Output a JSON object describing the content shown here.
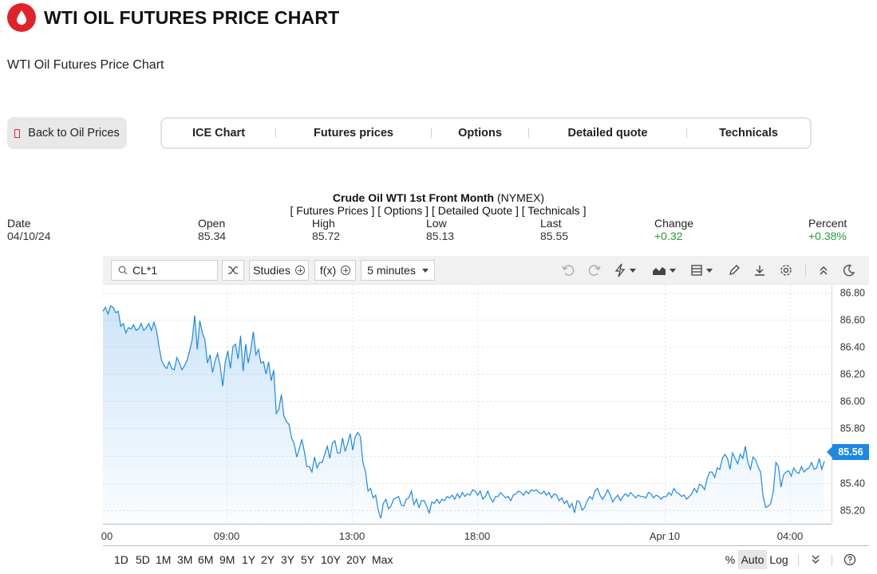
{
  "header": {
    "title": "WTI OIL FUTURES PRICE CHART",
    "subtitle": "WTI Oil Futures Price Chart",
    "brand_color": "#e0232a"
  },
  "back_button": {
    "label": "Back to Oil Prices"
  },
  "nav_tabs": [
    "ICE Chart",
    "Futures prices",
    "Options",
    "Detailed quote",
    "Technicals"
  ],
  "quote": {
    "name": "Crude Oil WTI 1st Front Month",
    "exchange": "(NYMEX)",
    "links": [
      "[ Futures Prices ]",
      "[ Options ]",
      "[ Detailed Quote ]",
      "[ Technicals ]"
    ],
    "date_label": "Date",
    "date": "04/10/24",
    "open_label": "Open",
    "open": "85.34",
    "high_label": "High",
    "high": "85.72",
    "low_label": "Low",
    "low": "85.13",
    "last_label": "Last",
    "last": "85.55",
    "change_label": "Change",
    "change": "+0.32",
    "percent_label": "Percent",
    "percent": "+0.38%",
    "positive_color": "#1f9e3a"
  },
  "toolbar": {
    "symbol": "CL*1",
    "studies_label": "Studies",
    "fx_label": "f(x)",
    "interval_label": "5 minutes",
    "icons": [
      "undo-icon",
      "redo-icon",
      "lightning-icon",
      "chart-type-icon",
      "layout-icon",
      "pencil-icon",
      "download-icon",
      "gear-icon",
      "collapse-icon",
      "dark-mode-icon"
    ]
  },
  "ranges": [
    "1D",
    "5D",
    "1M",
    "3M",
    "6M",
    "9M",
    "1Y",
    "2Y",
    "3Y",
    "5Y",
    "10Y",
    "20Y",
    "Max"
  ],
  "scale_buttons": {
    "percent": "%",
    "auto": "Auto",
    "log": "Log"
  },
  "price_badge": "85.56",
  "chart_data": {
    "type": "area",
    "line_color": "#1e88e5",
    "y_ticks": [
      "86.80",
      "86.60",
      "86.40",
      "86.20",
      "86.00",
      "85.80",
      "85.60",
      "85.40",
      "85.20"
    ],
    "x_ticks": [
      "00",
      "09:00",
      "13:00",
      "18:00",
      "Apr 10",
      "04:00"
    ],
    "ylim": [
      85.1,
      86.85
    ],
    "grid": true,
    "last_value": 85.56,
    "values": [
      86.66,
      86.69,
      86.64,
      86.7,
      86.69,
      86.65,
      86.66,
      86.55,
      86.57,
      86.5,
      86.54,
      86.53,
      86.56,
      86.52,
      86.53,
      86.57,
      86.52,
      86.54,
      86.57,
      86.52,
      86.58,
      86.52,
      86.4,
      86.3,
      86.26,
      86.24,
      86.29,
      86.24,
      86.23,
      86.32,
      86.28,
      86.23,
      86.26,
      86.3,
      86.37,
      86.45,
      86.63,
      86.38,
      86.59,
      86.5,
      86.45,
      86.28,
      86.34,
      86.21,
      86.3,
      86.35,
      86.26,
      86.11,
      86.29,
      86.37,
      86.24,
      86.4,
      86.42,
      86.31,
      86.48,
      86.22,
      86.42,
      86.28,
      86.38,
      86.51,
      86.34,
      86.38,
      86.28,
      86.29,
      86.2,
      86.29,
      86.15,
      86.23,
      85.91,
      85.94,
      86.05,
      85.89,
      85.85,
      85.83,
      85.73,
      85.69,
      85.59,
      85.65,
      85.72,
      85.63,
      85.52,
      85.52,
      85.48,
      85.59,
      85.51,
      85.55,
      85.55,
      85.61,
      85.67,
      85.58,
      85.69,
      85.71,
      85.62,
      85.62,
      85.73,
      85.63,
      85.69,
      85.76,
      85.64,
      85.74,
      85.77,
      85.74,
      85.55,
      85.48,
      85.34,
      85.36,
      85.29,
      85.31,
      85.2,
      85.14,
      85.25,
      85.28,
      85.21,
      85.23,
      85.28,
      85.29,
      85.3,
      85.24,
      85.23,
      85.28,
      85.29,
      85.34,
      85.24,
      85.28,
      85.22,
      85.27,
      85.27,
      85.23,
      85.18,
      85.26,
      85.25,
      85.28,
      85.25,
      85.28,
      85.27,
      85.3,
      85.29,
      85.31,
      85.28,
      85.32,
      85.29,
      85.33,
      85.3,
      85.32,
      85.31,
      85.35,
      85.34,
      85.31,
      85.34,
      85.28,
      85.3,
      85.34,
      85.29,
      85.26,
      85.3,
      85.3,
      85.33,
      85.31,
      85.29,
      85.3,
      85.27,
      85.31,
      85.32,
      85.34,
      85.33,
      85.31,
      85.34,
      85.32,
      85.35,
      85.34,
      85.35,
      85.33,
      85.32,
      85.34,
      85.31,
      85.33,
      85.29,
      85.32,
      85.31,
      85.27,
      85.29,
      85.25,
      85.27,
      85.22,
      85.25,
      85.18,
      85.27,
      85.26,
      85.2,
      85.22,
      85.27,
      85.3,
      85.28,
      85.34,
      85.36,
      85.31,
      85.28,
      85.31,
      85.35,
      85.31,
      85.26,
      85.29,
      85.31,
      85.27,
      85.3,
      85.32,
      85.3,
      85.33,
      85.31,
      85.29,
      85.31,
      85.3,
      85.3,
      85.29,
      85.33,
      85.32,
      85.29,
      85.31,
      85.3,
      85.28,
      85.3,
      85.3,
      85.33,
      85.31,
      85.36,
      85.33,
      85.32,
      85.3,
      85.31,
      85.28,
      85.3,
      85.32,
      85.36,
      85.33,
      85.39,
      85.38,
      85.35,
      85.43,
      85.48,
      85.48,
      85.44,
      85.51,
      85.5,
      85.58,
      85.61,
      85.58,
      85.5,
      85.62,
      85.58,
      85.54,
      85.61,
      85.58,
      85.67,
      85.55,
      85.5,
      85.59,
      85.57,
      85.52,
      85.48,
      85.3,
      85.22,
      85.23,
      85.25,
      85.34,
      85.55,
      85.52,
      85.37,
      85.46,
      85.48,
      85.49,
      85.45,
      85.51,
      85.48,
      85.47,
      85.52,
      85.48,
      85.5,
      85.51,
      85.55,
      85.5,
      85.51,
      85.58,
      85.5,
      85.56
    ]
  }
}
